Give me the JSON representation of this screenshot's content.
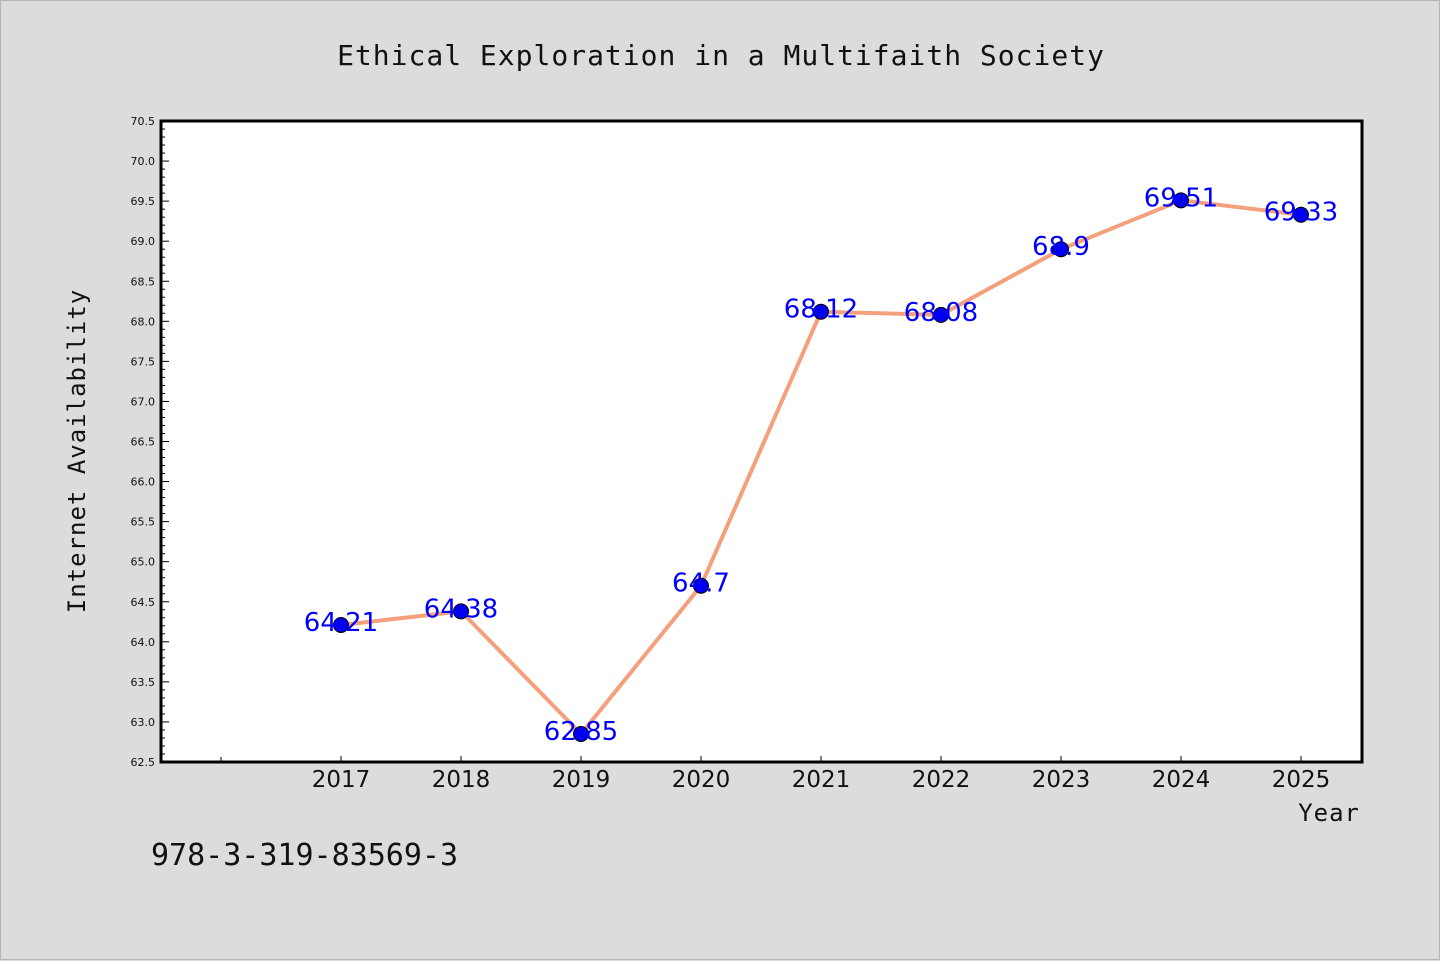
{
  "chart_data": {
    "type": "line",
    "title": "Ethical Exploration in a Multifaith Society",
    "xlabel": "Year",
    "ylabel": "Internet Availability",
    "x": [
      "2017",
      "2018",
      "2019",
      "2020",
      "2021",
      "2022",
      "2023",
      "2024",
      "2025"
    ],
    "series": [
      {
        "values": [
          64.21,
          64.38,
          62.85,
          64.7,
          68.12,
          68.08,
          68.9,
          69.51,
          69.33
        ]
      }
    ],
    "data_labels": [
      "64.21",
      "64.38",
      "62.85",
      "64.7",
      "68.12",
      "68.08",
      "68.9",
      "69.51",
      "69.33"
    ],
    "ylim": [
      62.5,
      70.5
    ],
    "yticks": [
      "62.5",
      "63.0",
      "63.5",
      "64.0",
      "64.5",
      "65.0",
      "65.5",
      "66.0",
      "66.5",
      "67.0",
      "67.5",
      "68.0",
      "68.5",
      "69.0",
      "69.5",
      "70.0",
      "70.5"
    ],
    "grid": false,
    "colors": {
      "line": "#f4a07c",
      "marker": "#0000ee",
      "data_label": "#0000ff",
      "background": "#dcdcdc",
      "plot_area": "#ffffff"
    }
  },
  "footer": {
    "isbn": "978-3-319-83569-3"
  }
}
